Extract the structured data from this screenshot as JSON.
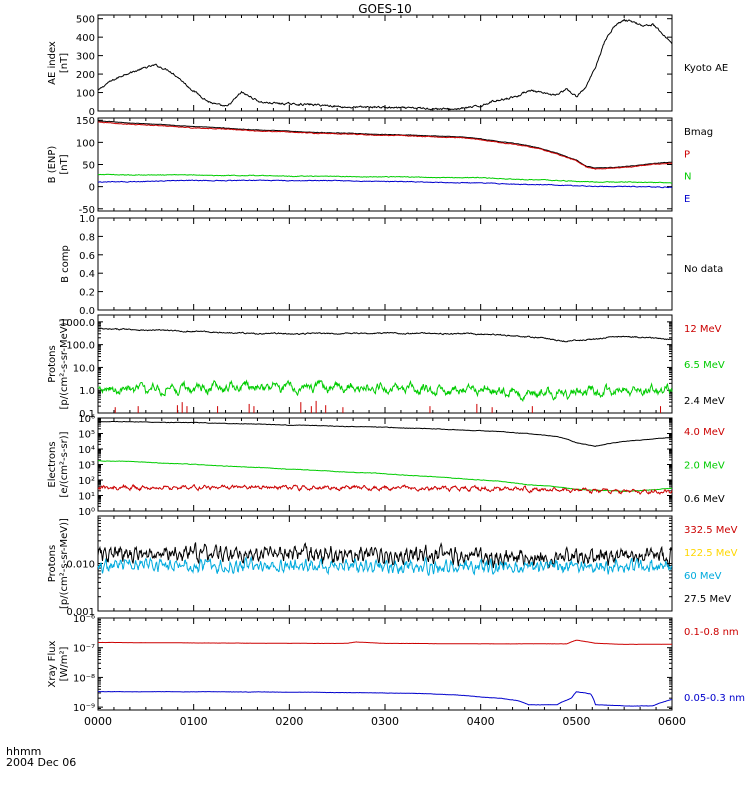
{
  "title": "GOES-10",
  "time_axis": {
    "ticks": [
      "0000",
      "0100",
      "0200",
      "0300",
      "0400",
      "0500",
      "0600"
    ],
    "row1": "hhmm",
    "row2": "2004 Dec 06"
  },
  "chart_data": [
    {
      "type": "line",
      "id": "ae",
      "ylabel": [
        "AE index",
        "[nT]"
      ],
      "ylim": [
        0,
        520
      ],
      "yscale": "linear",
      "ticks": [
        0,
        100,
        200,
        300,
        400,
        500
      ],
      "tick_labels": [
        "0",
        "100",
        "200",
        "300",
        "400",
        "500"
      ],
      "legend": [
        {
          "text": "Kyoto AE",
          "color": "#000000"
        }
      ],
      "series": [
        {
          "color": "#000000",
          "noise": 10,
          "hz": 0.3,
          "x": [
            0,
            0.1,
            0.2,
            0.3,
            0.4,
            0.5,
            0.6,
            0.75,
            0.85,
            0.95,
            1.05,
            1.15,
            1.25,
            1.35,
            1.5,
            1.7,
            2.0,
            2.3,
            2.6,
            2.9,
            3.2,
            3.5,
            3.7,
            3.85,
            4.0,
            4.1,
            4.2,
            4.3,
            4.4,
            4.5,
            4.6,
            4.7,
            4.8,
            4.9,
            5.0,
            5.1,
            5.2,
            5.3,
            5.4,
            5.5,
            5.6,
            5.7,
            5.8,
            5.9,
            6.0
          ],
          "y": [
            110,
            150,
            175,
            200,
            215,
            235,
            250,
            220,
            180,
            130,
            90,
            50,
            30,
            20,
            100,
            50,
            40,
            30,
            20,
            25,
            15,
            10,
            10,
            20,
            30,
            50,
            60,
            70,
            80,
            110,
            100,
            90,
            90,
            120,
            80,
            130,
            240,
            380,
            460,
            490,
            480,
            460,
            470,
            420,
            370
          ]
        }
      ]
    },
    {
      "type": "line",
      "id": "bfield",
      "ylabel": [
        "B (ENP)",
        "[nT]"
      ],
      "ylim": [
        -55,
        155
      ],
      "yscale": "linear",
      "ticks": [
        -50,
        0,
        50,
        100,
        150
      ],
      "tick_labels": [
        "-50",
        "0",
        "50",
        "100",
        "150"
      ],
      "legend": [
        {
          "text": "Bmag",
          "color": "#000000"
        },
        {
          "text": "P",
          "color": "#cc0000"
        },
        {
          "text": "N",
          "color": "#00cc00"
        },
        {
          "text": "E",
          "color": "#0000cc"
        }
      ],
      "series": [
        {
          "color": "#000000",
          "noise": 1,
          "hz": 0.5,
          "x": [
            0,
            0.5,
            1.0,
            1.5,
            2.0,
            2.5,
            3.0,
            3.5,
            3.8,
            4.0,
            4.2,
            4.4,
            4.6,
            4.8,
            5.0,
            5.1,
            5.2,
            5.4,
            5.6,
            5.8,
            6.0
          ],
          "y": [
            148,
            142,
            136,
            130,
            125,
            121,
            118,
            115,
            112,
            108,
            102,
            96,
            88,
            76,
            60,
            46,
            42,
            44,
            47,
            52,
            56
          ]
        },
        {
          "color": "#cc0000",
          "noise": 1.5,
          "hz": 0.5,
          "x": [
            0,
            0.5,
            1.0,
            1.5,
            2.0,
            2.5,
            3.0,
            3.5,
            3.8,
            4.0,
            4.2,
            4.4,
            4.6,
            4.8,
            5.0,
            5.1,
            5.2,
            5.4,
            5.6,
            5.8,
            6.0
          ],
          "y": [
            145,
            139,
            133,
            128,
            123,
            119,
            116,
            113,
            110,
            106,
            100,
            94,
            86,
            74,
            58,
            44,
            40,
            42,
            45,
            50,
            54
          ]
        },
        {
          "color": "#00cc00",
          "noise": 1.5,
          "hz": 0.4,
          "x": [
            0,
            1.0,
            2.0,
            3.0,
            4.0,
            4.5,
            5.0,
            5.5,
            6.0
          ],
          "y": [
            27,
            26,
            24,
            22,
            20,
            16,
            12,
            10,
            9
          ]
        },
        {
          "color": "#0000cc",
          "noise": 1.5,
          "hz": 0.4,
          "x": [
            0,
            0.5,
            1.0,
            2.0,
            3.0,
            3.5,
            4.0,
            4.5,
            5.0,
            5.5,
            6.0
          ],
          "y": [
            10,
            12,
            14,
            14,
            12,
            10,
            8,
            5,
            2,
            0,
            -1
          ]
        }
      ]
    },
    {
      "type": "line",
      "id": "bcomp",
      "ylabel": [
        "B comp"
      ],
      "ylim": [
        0,
        1.0
      ],
      "yscale": "linear",
      "ticks": [
        0,
        0.2,
        0.4,
        0.6,
        0.8,
        1.0
      ],
      "tick_labels": [
        "0.0",
        "0.2",
        "0.4",
        "0.6",
        "0.8",
        "1.0"
      ],
      "legend": [
        {
          "text": "No data",
          "color": "#000000"
        }
      ],
      "series": []
    },
    {
      "type": "line",
      "id": "protons1",
      "ylabel": [
        "Protons",
        "[p/(cm²-s-sr-MeV)]"
      ],
      "ylim": [
        0.1,
        2000
      ],
      "yscale": "log",
      "ticks": [
        0.1,
        1,
        10,
        100,
        1000
      ],
      "tick_labels": [
        "0.1",
        "1.0",
        "10.0",
        "100.0",
        "1000.0"
      ],
      "legend": [
        {
          "text": "12 MeV",
          "color": "#cc0000"
        },
        {
          "text": "6.5 MeV",
          "color": "#00cc00"
        },
        {
          "text": "2.4 MeV",
          "color": "#000000"
        }
      ],
      "series": [
        {
          "color": "#000000",
          "noise": 0.05,
          "hz": 0.8,
          "x": [
            0,
            0.5,
            1.0,
            1.5,
            2.0,
            2.5,
            3.0,
            3.5,
            4.0,
            4.5,
            4.9,
            5.1,
            5.3,
            5.6,
            5.8,
            6.0
          ],
          "y": [
            500,
            440,
            380,
            320,
            300,
            310,
            320,
            310,
            290,
            220,
            140,
            160,
            200,
            230,
            190,
            170
          ]
        },
        {
          "color": "#00cc00",
          "noise": 0.35,
          "hz": 2,
          "x": [
            0,
            1.0,
            2.0,
            3.0,
            4.0,
            4.5,
            5.0,
            5.5,
            6.0
          ],
          "y": [
            1.1,
            1.2,
            1.4,
            1.2,
            1.0,
            0.7,
            0.8,
            1.0,
            1.1
          ]
        },
        {
          "color": "#cc0000",
          "spikes": true,
          "x": [
            0.18,
            0.42,
            0.83,
            0.88,
            0.93,
            1.25,
            1.58,
            1.63,
            2.12,
            2.23,
            2.28,
            2.38,
            2.56,
            3.47,
            3.96,
            4.12,
            4.54,
            5.88
          ],
          "y": [
            0.18,
            0.2,
            0.22,
            0.3,
            0.2,
            0.2,
            0.25,
            0.2,
            0.3,
            0.2,
            0.34,
            0.22,
            0.18,
            0.2,
            0.25,
            0.18,
            0.2,
            0.2
          ]
        }
      ]
    },
    {
      "type": "line",
      "id": "electrons",
      "ylabel": [
        "Electrons",
        "[e/(cm²-s-sr)]"
      ],
      "ylim": [
        1,
        1000000
      ],
      "yscale": "log",
      "ticks": [
        1,
        10,
        100,
        1000,
        10000,
        100000,
        1000000
      ],
      "tick_labels": [
        "10⁰",
        "10¹",
        "10²",
        "10³",
        "10⁴",
        "10⁵",
        "10⁶"
      ],
      "legend": [
        {
          "text": "4.0 MeV",
          "color": "#cc0000"
        },
        {
          "text": "2.0 MeV",
          "color": "#00cc00"
        },
        {
          "text": "0.6 MeV",
          "color": "#000000"
        }
      ],
      "series": [
        {
          "color": "#000000",
          "noise": 0.03,
          "hz": 0.5,
          "x": [
            0,
            1.0,
            2.0,
            3.0,
            4.0,
            4.5,
            4.8,
            5.0,
            5.2,
            5.4,
            5.6,
            5.8,
            6.0
          ],
          "y": [
            600000,
            500000,
            350000,
            250000,
            150000,
            100000,
            60000,
            25000,
            15000,
            25000,
            35000,
            45000,
            55000
          ]
        },
        {
          "color": "#00cc00",
          "noise": 0.03,
          "hz": 0.5,
          "x": [
            0,
            0.5,
            1.0,
            1.5,
            2.0,
            2.5,
            3.0,
            3.5,
            4.0,
            4.5,
            5.0,
            5.5,
            6.0
          ],
          "y": [
            1800,
            1400,
            1000,
            700,
            500,
            350,
            250,
            160,
            100,
            50,
            25,
            18,
            28
          ]
        },
        {
          "color": "#cc0000",
          "noise": 0.22,
          "hz": 3,
          "x": [
            0,
            1.0,
            2.0,
            3.0,
            4.0,
            5.0,
            6.0
          ],
          "y": [
            30,
            35,
            32,
            30,
            28,
            20,
            18
          ]
        }
      ]
    },
    {
      "type": "line",
      "id": "protons2",
      "ylabel": [
        "Protons",
        "[p/(cm²-s-sr-MeV)]"
      ],
      "ylim": [
        0.001,
        0.1
      ],
      "yscale": "log",
      "ticks": [
        0.001,
        0.01
      ],
      "tick_labels": [
        "0.001",
        "0.010"
      ],
      "legend": [
        {
          "text": "332.5 MeV",
          "color": "#cc0000"
        },
        {
          "text": "122.5 MeV",
          "color": "#ffd700"
        },
        {
          "text": "60 MeV",
          "color": "#00aadd"
        },
        {
          "text": "27.5 MeV",
          "color": "#000000"
        }
      ],
      "series": [
        {
          "color": "#000000",
          "noise": 0.25,
          "hz": 6,
          "x": [
            0,
            1.0,
            2.0,
            3.0,
            4.0,
            5.0,
            6.0
          ],
          "y": [
            0.015,
            0.016,
            0.016,
            0.015,
            0.014,
            0.014,
            0.015
          ]
        },
        {
          "color": "#00aadd",
          "noise": 0.2,
          "hz": 6,
          "x": [
            0,
            1.0,
            2.0,
            3.0,
            4.0,
            5.0,
            6.0
          ],
          "y": [
            0.009,
            0.009,
            0.009,
            0.0085,
            0.0085,
            0.0085,
            0.009
          ]
        }
      ]
    },
    {
      "type": "line",
      "id": "xray",
      "ylabel": [
        "Xray Flux",
        "[W/m²]"
      ],
      "ylim": [
        8e-10,
        1e-06
      ],
      "yscale": "log",
      "ticks": [
        1e-09,
        1e-08,
        1e-07,
        1e-06
      ],
      "tick_labels": [
        "10⁻⁹",
        "10⁻⁸",
        "10⁻⁷",
        "10⁻⁶"
      ],
      "legend": [
        {
          "text": "0.1-0.8 nm",
          "color": "#cc0000"
        },
        {
          "text": "0.05-0.3 nm",
          "color": "#0000cc"
        }
      ],
      "series": [
        {
          "color": "#cc0000",
          "noise": 0.005,
          "hz": 0.5,
          "x": [
            0,
            1.0,
            2.0,
            2.6,
            2.7,
            3.0,
            4.0,
            4.9,
            5.0,
            5.2,
            5.5,
            6.0
          ],
          "y": [
            1.5e-07,
            1.45e-07,
            1.4e-07,
            1.4e-07,
            1.55e-07,
            1.4e-07,
            1.35e-07,
            1.35e-07,
            1.8e-07,
            1.4e-07,
            1.3e-07,
            1.3e-07
          ]
        },
        {
          "color": "#0000cc",
          "noise": 0.01,
          "hz": 0.6,
          "x": [
            0,
            1.0,
            2.0,
            3.0,
            3.5,
            3.8,
            4.0,
            4.2,
            4.4,
            4.5,
            4.8,
            4.95,
            5.0,
            5.15,
            5.2,
            5.5,
            5.8,
            6.0
          ],
          "y": [
            3.3e-09,
            3.3e-09,
            3.2e-09,
            3e-09,
            2.8e-09,
            2.5e-09,
            2.2e-09,
            2e-09,
            1.6e-09,
            1.2e-09,
            1.2e-09,
            2e-09,
            3.3e-09,
            2.8e-09,
            1.2e-09,
            1.1e-09,
            1.1e-09,
            1.8e-09
          ]
        }
      ]
    }
  ]
}
